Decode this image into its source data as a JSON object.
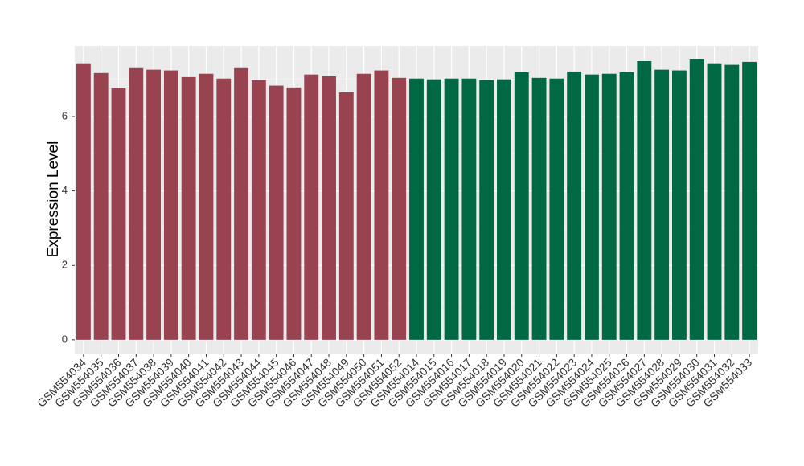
{
  "chart_data": {
    "type": "bar",
    "y_label": "Expression Level",
    "categories": [
      "GSM554034",
      "GSM554035",
      "GSM554036",
      "GSM554037",
      "GSM554038",
      "GSM554039",
      "GSM554040",
      "GSM554041",
      "GSM554042",
      "GSM554043",
      "GSM554044",
      "GSM554045",
      "GSM554046",
      "GSM554047",
      "GSM554048",
      "GSM554049",
      "GSM554050",
      "GSM554051",
      "GSM554052",
      "GSM554014",
      "GSM554015",
      "GSM554016",
      "GSM554017",
      "GSM554018",
      "GSM554019",
      "GSM554020",
      "GSM554021",
      "GSM554022",
      "GSM554023",
      "GSM554024",
      "GSM554025",
      "GSM554026",
      "GSM554027",
      "GSM554028",
      "GSM554029",
      "GSM554030",
      "GSM554031",
      "GSM554032",
      "GSM554033"
    ],
    "values": [
      7.41,
      7.17,
      6.76,
      7.3,
      7.26,
      7.24,
      7.06,
      7.15,
      7.02,
      7.3,
      6.98,
      6.83,
      6.78,
      7.13,
      7.08,
      6.65,
      7.15,
      7.24,
      7.04,
      7.02,
      7.0,
      7.02,
      7.02,
      6.98,
      7.0,
      7.19,
      7.04,
      7.02,
      7.21,
      7.13,
      7.15,
      7.19,
      7.49,
      7.26,
      7.24,
      7.54,
      7.41,
      7.39,
      7.47
    ],
    "colors": [
      "#9a4350",
      "#9a4350",
      "#9a4350",
      "#9a4350",
      "#9a4350",
      "#9a4350",
      "#9a4350",
      "#9a4350",
      "#9a4350",
      "#9a4350",
      "#9a4350",
      "#9a4350",
      "#9a4350",
      "#9a4350",
      "#9a4350",
      "#9a4350",
      "#9a4350",
      "#9a4350",
      "#9a4350",
      "#016844",
      "#016844",
      "#016844",
      "#016844",
      "#016844",
      "#016844",
      "#016844",
      "#016844",
      "#016844",
      "#016844",
      "#016844",
      "#016844",
      "#016844",
      "#016844",
      "#016844",
      "#016844",
      "#016844",
      "#016844",
      "#016844",
      "#016844"
    ],
    "ylim": [
      -0.37,
      7.9
    ],
    "yticks": [
      0,
      2,
      4,
      6
    ],
    "grid": true
  }
}
